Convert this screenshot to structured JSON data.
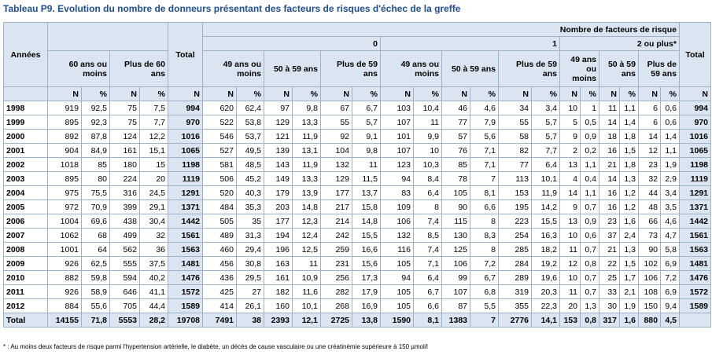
{
  "title": "Tableau P9. Evolution du nombre de donneurs présentant des facteurs de risques d'échec de la greffe",
  "headers": {
    "annees": "Années",
    "total": "Total",
    "nb_facteurs": "Nombre de facteurs de risque",
    "g0": "0",
    "g1": "1",
    "g2": "2 ou plus*",
    "age60": "60 ans ou moins",
    "plus60": "Plus de 60 ans",
    "age49": "49 ans ou moins",
    "age5059": "50 à 59 ans",
    "plus59": "Plus de 59 ans",
    "n": "N",
    "pct": "%"
  },
  "rows": [
    {
      "year": "1998",
      "v": [
        "919",
        "92,5",
        "75",
        "7,5",
        "994",
        "620",
        "62,4",
        "97",
        "9,8",
        "67",
        "6,7",
        "103",
        "10,4",
        "46",
        "4,6",
        "34",
        "3,4",
        "10",
        "1",
        "11",
        "1,1",
        "6",
        "0,6",
        "994"
      ]
    },
    {
      "year": "1999",
      "v": [
        "895",
        "92,3",
        "75",
        "7,7",
        "970",
        "522",
        "53,8",
        "129",
        "13,3",
        "55",
        "5,7",
        "107",
        "11",
        "77",
        "7,9",
        "55",
        "5,7",
        "5",
        "0,5",
        "14",
        "1,4",
        "6",
        "0,6",
        "970"
      ]
    },
    {
      "year": "2000",
      "v": [
        "892",
        "87,8",
        "124",
        "12,2",
        "1016",
        "546",
        "53,7",
        "121",
        "11,9",
        "92",
        "9,1",
        "101",
        "9,9",
        "57",
        "5,6",
        "58",
        "5,7",
        "9",
        "0,9",
        "18",
        "1,8",
        "14",
        "1,4",
        "1016"
      ]
    },
    {
      "year": "2001",
      "v": [
        "904",
        "84,9",
        "161",
        "15,1",
        "1065",
        "527",
        "49,5",
        "139",
        "13,1",
        "104",
        "9,8",
        "107",
        "10",
        "76",
        "7,1",
        "82",
        "7,7",
        "2",
        "0,2",
        "16",
        "1,5",
        "12",
        "1,1",
        "1065"
      ]
    },
    {
      "year": "2002",
      "v": [
        "1018",
        "85",
        "180",
        "15",
        "1198",
        "581",
        "48,5",
        "143",
        "11,9",
        "132",
        "11",
        "123",
        "10,3",
        "85",
        "7,1",
        "77",
        "6,4",
        "13",
        "1,1",
        "21",
        "1,8",
        "23",
        "1,9",
        "1198"
      ]
    },
    {
      "year": "2003",
      "v": [
        "895",
        "80",
        "224",
        "20",
        "1119",
        "506",
        "45,2",
        "149",
        "13,3",
        "129",
        "11,5",
        "94",
        "8,4",
        "78",
        "7",
        "113",
        "10,1",
        "4",
        "0,4",
        "14",
        "1,3",
        "32",
        "2,9",
        "1119"
      ]
    },
    {
      "year": "2004",
      "v": [
        "975",
        "75,5",
        "316",
        "24,5",
        "1291",
        "520",
        "40,3",
        "179",
        "13,9",
        "177",
        "13,7",
        "83",
        "6,4",
        "105",
        "8,1",
        "153",
        "11,9",
        "14",
        "1,1",
        "16",
        "1,2",
        "44",
        "3,4",
        "1291"
      ]
    },
    {
      "year": "2005",
      "v": [
        "972",
        "70,9",
        "399",
        "29,1",
        "1371",
        "484",
        "35,3",
        "203",
        "14,8",
        "217",
        "15,8",
        "109",
        "8",
        "90",
        "6,6",
        "195",
        "14,2",
        "9",
        "0,7",
        "16",
        "1,2",
        "48",
        "3,5",
        "1371"
      ]
    },
    {
      "year": "2006",
      "v": [
        "1004",
        "69,6",
        "438",
        "30,4",
        "1442",
        "505",
        "35",
        "177",
        "12,3",
        "214",
        "14,8",
        "106",
        "7,4",
        "115",
        "8",
        "223",
        "15,5",
        "13",
        "0,9",
        "23",
        "1,6",
        "66",
        "4,6",
        "1442"
      ]
    },
    {
      "year": "2007",
      "v": [
        "1062",
        "68",
        "499",
        "32",
        "1561",
        "489",
        "31,3",
        "194",
        "12,4",
        "242",
        "15,5",
        "132",
        "8,5",
        "130",
        "8,3",
        "254",
        "16,3",
        "10",
        "0,6",
        "37",
        "2,4",
        "73",
        "4,7",
        "1561"
      ]
    },
    {
      "year": "2008",
      "v": [
        "1001",
        "64",
        "562",
        "36",
        "1563",
        "460",
        "29,4",
        "196",
        "12,5",
        "259",
        "16,6",
        "116",
        "7,4",
        "125",
        "8",
        "285",
        "18,2",
        "11",
        "0,7",
        "21",
        "1,3",
        "90",
        "5,8",
        "1563"
      ]
    },
    {
      "year": "2009",
      "v": [
        "926",
        "62,5",
        "555",
        "37,5",
        "1481",
        "456",
        "30,8",
        "163",
        "11",
        "231",
        "15,6",
        "105",
        "7,1",
        "106",
        "7,2",
        "284",
        "19,2",
        "12",
        "0,8",
        "22",
        "1,5",
        "102",
        "6,9",
        "1481"
      ]
    },
    {
      "year": "2010",
      "v": [
        "882",
        "59,8",
        "594",
        "40,2",
        "1476",
        "436",
        "29,5",
        "161",
        "10,9",
        "256",
        "17,3",
        "94",
        "6,4",
        "99",
        "6,7",
        "289",
        "19,6",
        "10",
        "0,7",
        "25",
        "1,7",
        "106",
        "7,2",
        "1476"
      ]
    },
    {
      "year": "2011",
      "v": [
        "926",
        "58,9",
        "646",
        "41,1",
        "1572",
        "425",
        "27",
        "182",
        "11,6",
        "282",
        "17,9",
        "105",
        "6,7",
        "107",
        "6,8",
        "319",
        "20,3",
        "11",
        "0,7",
        "33",
        "2,1",
        "108",
        "6,9",
        "1572"
      ]
    },
    {
      "year": "2012",
      "v": [
        "884",
        "55,6",
        "705",
        "44,4",
        "1589",
        "414",
        "26,1",
        "160",
        "10,1",
        "268",
        "16,9",
        "105",
        "6,6",
        "87",
        "5,5",
        "355",
        "22,3",
        "20",
        "1,3",
        "30",
        "1,9",
        "150",
        "9,4",
        "1589"
      ]
    }
  ],
  "total_row": {
    "label": "Total",
    "v": [
      "14155",
      "71,8",
      "5553",
      "28,2",
      "19708",
      "7491",
      "38",
      "2393",
      "12,1",
      "2725",
      "13,8",
      "1590",
      "8,1",
      "1383",
      "7",
      "2776",
      "14,1",
      "153",
      "0,8",
      "317",
      "1,6",
      "880",
      "4,5",
      ""
    ]
  },
  "footnote": "* : Au moins deux facteurs de risque parmi l'hypertension artérielle, le diabète, un décès de cause vasculaire ou une créatinémie supérieure à 150 µmol/l"
}
